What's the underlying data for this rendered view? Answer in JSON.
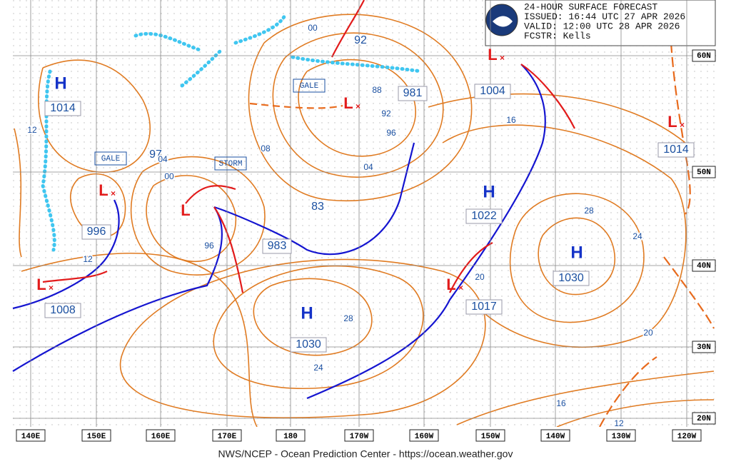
{
  "header": {
    "lines": [
      "24-HOUR SURFACE FORECAST",
      "ISSUED: 16:44 UTC 27 APR 2026",
      "VALID:  12:00 UTC 28 APR 2026",
      "FCSTR:  Kells"
    ]
  },
  "systems": [
    {
      "type": "H",
      "pressure": "1014"
    },
    {
      "type": "L",
      "pressure": "996"
    },
    {
      "type": "L",
      "pressure": "1008"
    },
    {
      "type": "L",
      "pressure": "981"
    },
    {
      "type": "L",
      "pressure": "1004"
    },
    {
      "type": "H",
      "pressure": "1022"
    },
    {
      "type": "H",
      "pressure": "1030"
    },
    {
      "type": "L",
      "pressure": "1017"
    },
    {
      "type": "H",
      "pressure": "1030"
    },
    {
      "type": "L",
      "pressure": "1014"
    },
    {
      "type": "L",
      "pressure": "983"
    }
  ],
  "storm_low": {
    "type": "L"
  },
  "warnings": [
    "GALE",
    "GALE",
    "STORM"
  ],
  "isobar_labels": [
    "12",
    "97",
    "04",
    "00",
    "08",
    "00",
    "92",
    "88",
    "92",
    "96",
    "04",
    "83",
    "96",
    "12",
    "16",
    "28",
    "24",
    "20",
    "28",
    "24",
    "20",
    "16",
    "12"
  ],
  "lon_labels": [
    "140E",
    "150E",
    "160E",
    "170E",
    "180",
    "170W",
    "160W",
    "150W",
    "140W",
    "130W",
    "120W"
  ],
  "lat_labels": [
    "60N",
    "50N",
    "40N",
    "30N",
    "20N"
  ],
  "footer": "NWS/NCEP - Ocean Prediction Center - https://ocean.weather.gov"
}
